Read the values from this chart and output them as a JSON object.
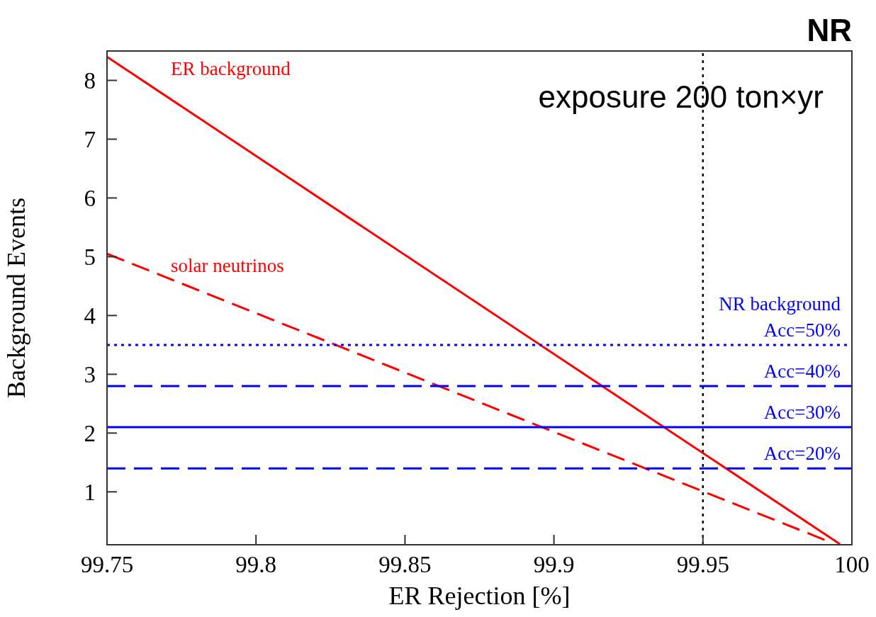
{
  "chart_data": {
    "type": "line",
    "title": "NR",
    "xlabel": "ER Rejection [%]",
    "ylabel": "Background Events",
    "xlim": [
      99.75,
      100
    ],
    "xticks": [
      99.75,
      99.8,
      99.85,
      99.9,
      99.95,
      100
    ],
    "ylim": [
      0.1,
      8.5
    ],
    "yticks": [
      1,
      2,
      3,
      4,
      5,
      6,
      7,
      8
    ],
    "marker": "none",
    "series": [
      {
        "name": "ER background",
        "color": "#ff0000",
        "line_style": "solid",
        "x": [
          99.75,
          99.996
        ],
        "values": [
          8.4,
          0.11
        ]
      },
      {
        "name": "solar neutrinos",
        "color": "#ff0000",
        "line_style": "dashed",
        "x": [
          99.75,
          99.992
        ],
        "values": [
          5.05,
          0.16
        ]
      },
      {
        "name": "Acc=50%",
        "color": "#0000ff",
        "line_style": "dotted",
        "x": [
          99.75,
          100
        ],
        "values": [
          3.5,
          3.5
        ]
      },
      {
        "name": "Acc=40%",
        "color": "#0000ff",
        "line_style": "dashed",
        "x": [
          99.75,
          100
        ],
        "values": [
          2.8,
          2.8
        ]
      },
      {
        "name": "Acc=30%",
        "color": "#0000ff",
        "line_style": "solid",
        "x": [
          99.75,
          100
        ],
        "values": [
          2.1,
          2.1
        ]
      },
      {
        "name": "Acc=20%",
        "color": "#0000ff",
        "line_style": "dashed",
        "x": [
          99.75,
          100
        ],
        "values": [
          1.4,
          1.4
        ]
      }
    ],
    "ref_lines": [
      {
        "axis": "x",
        "value": 99.95,
        "color": "#000000",
        "line_style": "dotted"
      }
    ],
    "annotations": [
      "NR background",
      "exposure 200 ton×yr"
    ]
  }
}
